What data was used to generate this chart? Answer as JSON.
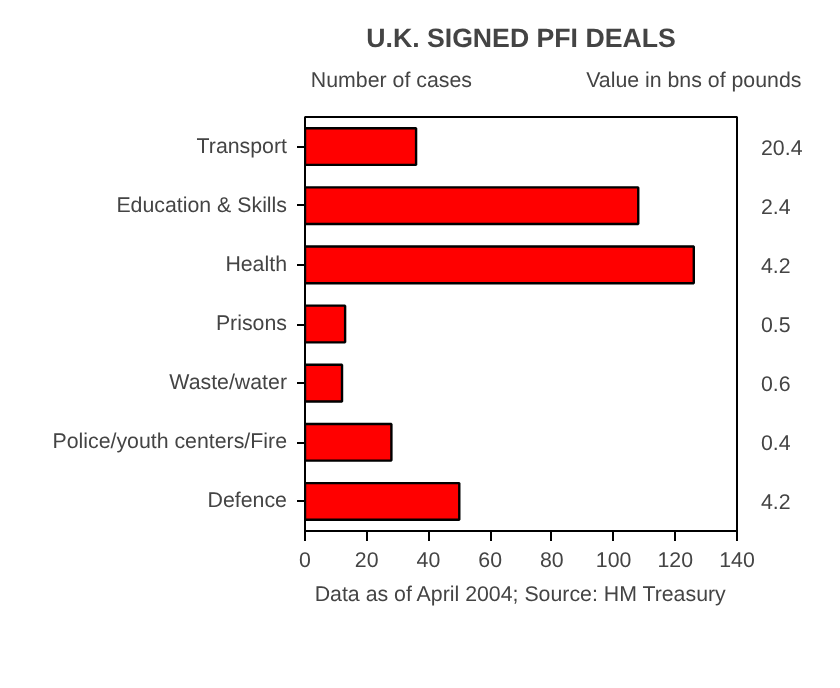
{
  "chart_data": {
    "type": "bar",
    "orientation": "horizontal",
    "title": "U.K. SIGNED PFI DEALS",
    "xlabel": "Number of cases",
    "categories": [
      "Transport",
      "Education & Skills",
      "Health",
      "Prisons",
      "Waste/water",
      "Police/youth centers/Fire",
      "Defence"
    ],
    "values": [
      36,
      108,
      126,
      13,
      12,
      28,
      50
    ],
    "color": "#ff0000",
    "xlim": [
      0,
      140
    ],
    "xticks": [
      0,
      20,
      40,
      60,
      80,
      100,
      120,
      140
    ],
    "grid": false,
    "legend": false,
    "annotations": [
      "Value in bns of pounds",
      "Data as of April 2004; Source: HM Treasury",
      "20.4",
      "2.4",
      "4.2",
      "0.5",
      "0.6",
      "0.4",
      "4.2"
    ]
  }
}
